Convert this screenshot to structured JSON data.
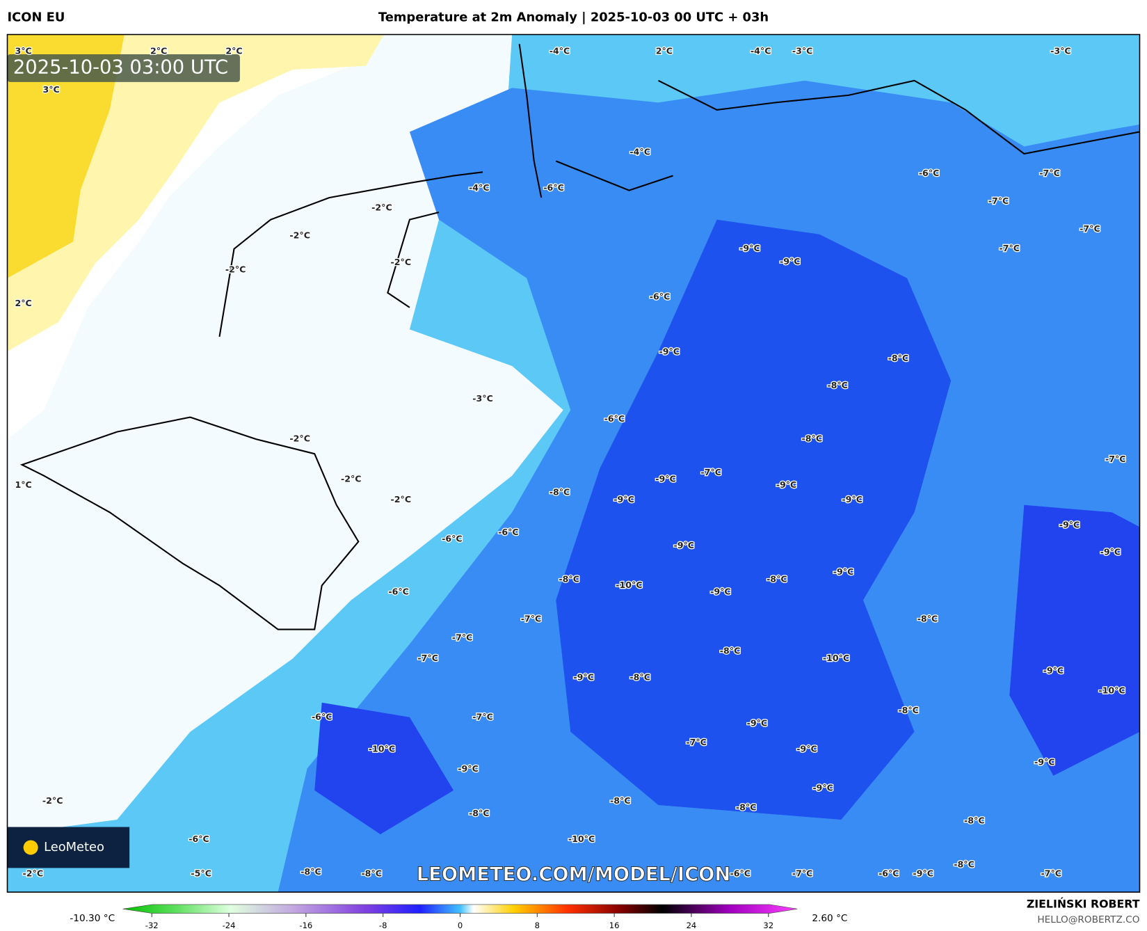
{
  "header": {
    "model": "ICON EU",
    "title": "Temperature at 2m Anomaly | 2025-10-03 00 UTC + 03h"
  },
  "map": {
    "timestamp": "2025-10-03 03:00 UTC",
    "watermark": "LEOMETEO.COM/MODEL/ICON",
    "logo": "LeoMeteo",
    "labels": [
      "3°C",
      "2°C",
      "2°C",
      "3°C",
      "-4°C",
      "2°C",
      "-4°C",
      "-3°C",
      "-3°C",
      "-4°C",
      "-6°C",
      "-7°C",
      "-4°C",
      "-6°C",
      "-2°C",
      "-7°C",
      "-2°C",
      "-7°C",
      "-2°C",
      "-2°C",
      "-9°C",
      "-9°C",
      "-7°C",
      "2°C",
      "-6°C",
      "-9°C",
      "-8°C",
      "-8°C",
      "-3°C",
      "-6°C",
      "-2°C",
      "-8°C",
      "-7°C",
      "1°C",
      "-2°C",
      "-7°C",
      "-9°C",
      "-9°C",
      "-9°C",
      "-8°C",
      "-9°C",
      "-2°C",
      "-6°C",
      "-6°C",
      "-9°C",
      "-9°C",
      "-9°C",
      "-9°C",
      "-8°C",
      "-10°C",
      "-9°C",
      "-8°C",
      "-6°C",
      "-7°C",
      "-8°C",
      "-7°C",
      "-8°C",
      "-7°C",
      "-10°C",
      "-9°C",
      "-8°C",
      "-9°C",
      "-10°C",
      "-6°C",
      "-7°C",
      "-8°C",
      "-9°C",
      "-10°C",
      "-7°C",
      "-9°C",
      "-9°C",
      "-9°C",
      "-2°C",
      "-9°C",
      "-8°C",
      "-8°C",
      "-8°C",
      "-8°C",
      "-6°C",
      "-10°C",
      "-8°C",
      "-2°C",
      "-5°C",
      "-8°C",
      "-8°C",
      "-6°C",
      "-7°C",
      "-6°C",
      "-9°C",
      "-7°C"
    ]
  },
  "colorbar": {
    "min_label": "-10.30 °C",
    "max_label": "2.60 °C",
    "xlim": [
      -35,
      35
    ],
    "ticks": [
      -32,
      -24,
      -16,
      -8,
      0,
      8,
      16,
      24,
      32
    ]
  },
  "footer": {
    "author": "ZIELIŃSKI ROBERT",
    "email": "HELLO@ROBERTZ.CO"
  }
}
